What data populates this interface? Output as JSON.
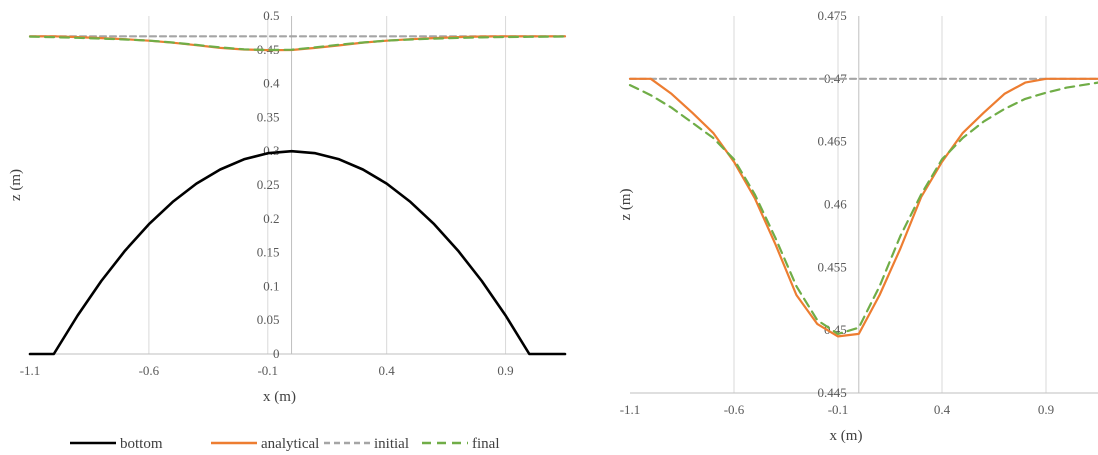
{
  "legend": [
    {
      "label": "bottom",
      "color": "#000000",
      "dash": "solid"
    },
    {
      "label": "analytical",
      "color": "#ED7D31",
      "dash": "solid"
    },
    {
      "label": "initial",
      "color": "#A5A5A5",
      "dash": "dashed"
    },
    {
      "label": "final",
      "color": "#70AD47",
      "dash": "dashed"
    }
  ],
  "chart_data": [
    {
      "type": "line",
      "xlabel": "x (m)",
      "ylabel": "z (m)",
      "xlim": [
        -1.1,
        1.15
      ],
      "ylim": [
        0,
        0.5
      ],
      "xticks": [
        "-1.1",
        "-0.6",
        "-0.1",
        "0.4",
        "0.9"
      ],
      "xtick_values": [
        -1.1,
        -0.6,
        -0.1,
        0.4,
        0.9
      ],
      "yticks": [
        "0",
        "0.05",
        "0.1",
        "0.15",
        "0.2",
        "0.25",
        "0.3",
        "0.35",
        "0.4",
        "0.45",
        "0.5"
      ],
      "ytick_values": [
        0,
        0.05,
        0.1,
        0.15,
        0.2,
        0.25,
        0.3,
        0.35,
        0.4,
        0.45,
        0.5
      ],
      "yaxis_at_x": 0,
      "grid": "vertical",
      "series": [
        {
          "name": "bottom",
          "x": [
            -1.1,
            -1.0,
            -0.9,
            -0.8,
            -0.7,
            -0.6,
            -0.5,
            -0.4,
            -0.3,
            -0.2,
            -0.1,
            0.0,
            0.1,
            0.2,
            0.3,
            0.4,
            0.5,
            0.6,
            0.7,
            0.8,
            0.9,
            1.0,
            1.15
          ],
          "y": [
            0,
            0,
            0.057,
            0.108,
            0.153,
            0.192,
            0.225,
            0.252,
            0.273,
            0.288,
            0.297,
            0.3,
            0.297,
            0.288,
            0.273,
            0.252,
            0.225,
            0.192,
            0.153,
            0.108,
            0.057,
            0,
            0
          ]
        },
        {
          "name": "analytical",
          "x": [
            -1.1,
            -1.0,
            -0.9,
            -0.8,
            -0.7,
            -0.6,
            -0.5,
            -0.4,
            -0.3,
            -0.2,
            -0.1,
            0.0,
            0.1,
            0.2,
            0.3,
            0.4,
            0.5,
            0.6,
            0.7,
            0.8,
            0.9,
            1.0,
            1.15
          ],
          "y": [
            0.47,
            0.47,
            0.4688,
            0.4673,
            0.4657,
            0.4634,
            0.4605,
            0.4568,
            0.4528,
            0.4505,
            0.4495,
            0.4497,
            0.4528,
            0.4565,
            0.4606,
            0.4634,
            0.4657,
            0.4673,
            0.4688,
            0.4697,
            0.47,
            0.47,
            0.47
          ]
        },
        {
          "name": "initial",
          "x": [
            -1.1,
            1.15
          ],
          "y": [
            0.47,
            0.47
          ]
        },
        {
          "name": "final",
          "x": [
            -1.1,
            -1.0,
            -0.9,
            -0.8,
            -0.7,
            -0.6,
            -0.5,
            -0.4,
            -0.3,
            -0.2,
            -0.1,
            0.0,
            0.1,
            0.2,
            0.3,
            0.4,
            0.5,
            0.6,
            0.7,
            0.8,
            0.9,
            1.0,
            1.15
          ],
          "y": [
            0.4695,
            0.4687,
            0.4677,
            0.4665,
            0.4653,
            0.4636,
            0.4608,
            0.4573,
            0.4535,
            0.4508,
            0.4497,
            0.4502,
            0.4535,
            0.4575,
            0.4608,
            0.4636,
            0.4653,
            0.4666,
            0.4676,
            0.4684,
            0.4689,
            0.4693,
            0.4697
          ]
        }
      ]
    },
    {
      "type": "line",
      "xlabel": "x (m)",
      "ylabel": "z (m)",
      "xlim": [
        -1.1,
        1.15
      ],
      "ylim": [
        0.445,
        0.475
      ],
      "xticks": [
        "-1.1",
        "-0.6",
        "-0.1",
        "0.4",
        "0.9"
      ],
      "xtick_values": [
        -1.1,
        -0.6,
        -0.1,
        0.4,
        0.9
      ],
      "yticks": [
        "0.445",
        "0.45",
        "0.455",
        "0.46",
        "0.465",
        "0.47",
        "0.475"
      ],
      "ytick_values": [
        0.445,
        0.45,
        0.455,
        0.46,
        0.465,
        0.47,
        0.475
      ],
      "yaxis_at_x": 0,
      "grid": "vertical",
      "series": [
        {
          "name": "analytical",
          "x": [
            -1.1,
            -1.0,
            -0.9,
            -0.8,
            -0.7,
            -0.6,
            -0.5,
            -0.4,
            -0.3,
            -0.2,
            -0.1,
            0.0,
            0.1,
            0.2,
            0.3,
            0.4,
            0.5,
            0.6,
            0.7,
            0.8,
            0.9,
            1.0,
            1.15
          ],
          "y": [
            0.47,
            0.47,
            0.4688,
            0.4673,
            0.4657,
            0.4634,
            0.4605,
            0.4568,
            0.4528,
            0.4505,
            0.4495,
            0.4497,
            0.4528,
            0.4565,
            0.4606,
            0.4634,
            0.4657,
            0.4673,
            0.4688,
            0.4697,
            0.47,
            0.47,
            0.47
          ]
        },
        {
          "name": "initial",
          "x": [
            -1.1,
            1.15
          ],
          "y": [
            0.47,
            0.47
          ]
        },
        {
          "name": "final",
          "x": [
            -1.1,
            -1.0,
            -0.9,
            -0.8,
            -0.7,
            -0.6,
            -0.5,
            -0.4,
            -0.3,
            -0.2,
            -0.1,
            0.0,
            0.1,
            0.2,
            0.3,
            0.4,
            0.5,
            0.6,
            0.7,
            0.8,
            0.9,
            1.0,
            1.15
          ],
          "y": [
            0.4695,
            0.4687,
            0.4677,
            0.4665,
            0.4653,
            0.4636,
            0.4608,
            0.4573,
            0.4535,
            0.4508,
            0.4497,
            0.4502,
            0.4535,
            0.4575,
            0.4608,
            0.4636,
            0.4653,
            0.4666,
            0.4676,
            0.4684,
            0.4689,
            0.4693,
            0.4697
          ]
        }
      ]
    }
  ]
}
